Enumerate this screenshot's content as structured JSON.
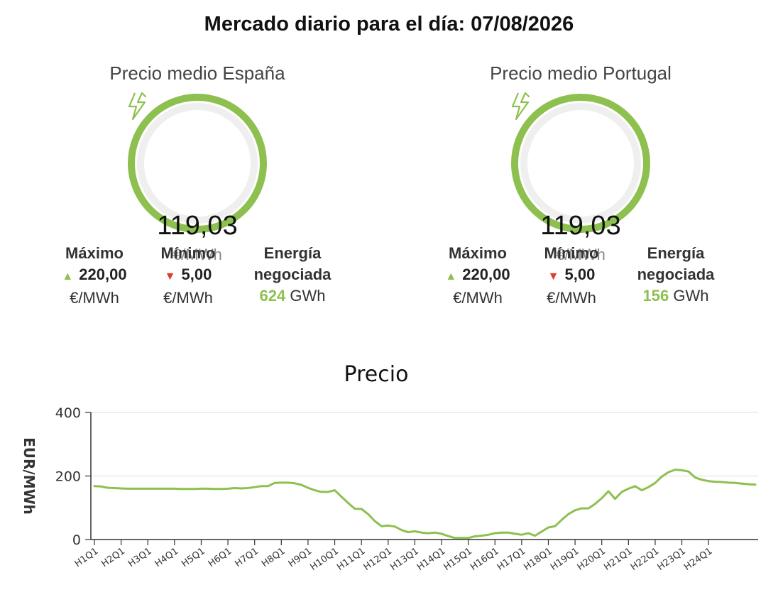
{
  "page_title": "Mercado diario para el día: 07/08/2026",
  "accent_color": "#8dc04f",
  "panels": {
    "es": {
      "title": "Precio medio España",
      "avg_price": "119,03",
      "unit": "€/MWh",
      "max_label": "Máximo",
      "max_value": "220,00",
      "min_label": "Mínimo",
      "min_value": "5,00",
      "energy_label_1": "Energía",
      "energy_label_2": "negociada",
      "energy_value": "624",
      "energy_unit": "GWh",
      "icon": "lightning-bolt-icon"
    },
    "pt": {
      "title": "Precio medio Portugal",
      "avg_price": "119,03",
      "unit": "€/MWh",
      "max_label": "Máximo",
      "max_value": "220,00",
      "min_label": "Mínimo",
      "min_value": "5,00",
      "energy_label_1": "Energía",
      "energy_label_2": "negociada",
      "energy_value": "156",
      "energy_unit": "GWh",
      "icon": "lightning-bolt-icon"
    }
  },
  "chart_data": {
    "type": "line",
    "title": "Precio",
    "ylabel": "EUR/MWh",
    "xlabel": "",
    "ylim": [
      0,
      400
    ],
    "yticks": [
      0,
      200,
      400
    ],
    "grid": true,
    "line_color": "#8dc04f",
    "x_tick_labels": [
      "H1Q1",
      "H2Q1",
      "H3Q1",
      "H4Q1",
      "H5Q1",
      "H6Q1",
      "H7Q1",
      "H8Q1",
      "H9Q1",
      "H10Q1",
      "H11Q1",
      "H12Q1",
      "H13Q1",
      "H14Q1",
      "H15Q1",
      "H16Q1",
      "H17Q1",
      "H18Q1",
      "H19Q1",
      "H20Q1",
      "H21Q1",
      "H22Q1",
      "H23Q1",
      "H24Q1"
    ],
    "series": [
      {
        "values": [
          168,
          167,
          163,
          162,
          161,
          160,
          160,
          160,
          160,
          160,
          160,
          160,
          160,
          159,
          159,
          159,
          160,
          160,
          159,
          159,
          160,
          162,
          161,
          162,
          165,
          168,
          168,
          178,
          179,
          179,
          177,
          172,
          163,
          155,
          150,
          150,
          155,
          135,
          115,
          97,
          96,
          80,
          58,
          42,
          44,
          41,
          30,
          23,
          26,
          22,
          20,
          22,
          18,
          11,
          5,
          5,
          5,
          10,
          12,
          15,
          20,
          22,
          22,
          18,
          15,
          20,
          12,
          25,
          38,
          42,
          62,
          80,
          92,
          98,
          98,
          112,
          130,
          152,
          128,
          150,
          160,
          168,
          155,
          165,
          178,
          198,
          212,
          220,
          218,
          214,
          195,
          188,
          184,
          182,
          181,
          179,
          178,
          176,
          174,
          173
        ]
      }
    ]
  }
}
